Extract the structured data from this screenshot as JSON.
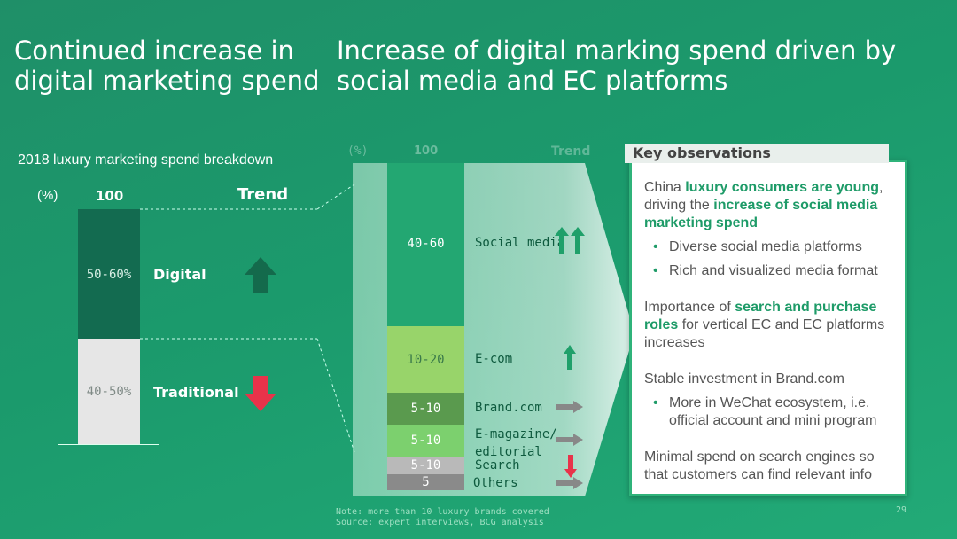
{
  "titles": {
    "left": "Continued increase in digital marketing spend",
    "right": "Increase of digital marking spend driven by social media and EC platforms"
  },
  "left_chart": {
    "subtitle": "2018 luxury marketing spend breakdown",
    "unit": "(%)",
    "total": "100",
    "trend_header": "Trend"
  },
  "right_chart": {
    "unit": "(%)",
    "total": "100",
    "trend_header": "Trend"
  },
  "chart_data": [
    {
      "type": "bar",
      "title": "2018 luxury marketing spend breakdown",
      "ylabel": "(%)",
      "total": "100",
      "stacked": true,
      "segments": [
        {
          "name": "Digital",
          "range": "50-60%",
          "low": 50,
          "high": 60,
          "trend": "up",
          "color": "#136b50"
        },
        {
          "name": "Traditional",
          "range": "40-50%",
          "low": 40,
          "high": 50,
          "trend": "down",
          "color": "#e6e6e6"
        }
      ]
    },
    {
      "type": "bar",
      "title": "",
      "ylabel": "(%)",
      "total": "100",
      "stacked": true,
      "segments": [
        {
          "name": "Social media",
          "range": "40-60",
          "low": 40,
          "high": 60,
          "trend": "strong-up",
          "color": "#23a772"
        },
        {
          "name": "E-com",
          "range": "10-20",
          "low": 10,
          "high": 20,
          "trend": "up",
          "color": "#98d46a"
        },
        {
          "name": "Brand.com",
          "range": "5-10",
          "low": 5,
          "high": 10,
          "trend": "flat",
          "color": "#5a9a4e"
        },
        {
          "name": "E-magazine/ editorial",
          "range": "5-10",
          "low": 5,
          "high": 10,
          "trend": "flat",
          "color": "#7cd06e"
        },
        {
          "name": "Search",
          "range": "5-10",
          "low": 5,
          "high": 10,
          "trend": "down",
          "color": "#b9b9b9"
        },
        {
          "name": "Others",
          "range": "5",
          "low": 5,
          "high": 5,
          "trend": "flat",
          "color": "#8a8a8a"
        }
      ]
    }
  ],
  "observations": {
    "header": "Key observations",
    "p1_a": "China ",
    "p1_hl1": "luxury consumers are young",
    "p1_b": ", driving the ",
    "p1_hl2": "increase of social media marketing spend",
    "bullet1": "Diverse social media platforms",
    "bullet2": "Rich and visualized media format",
    "p2_a": "Importance of ",
    "p2_hl": "search and purchase roles",
    "p2_b": " for vertical EC and EC platforms increases",
    "p3": "Stable investment in Brand.com",
    "bullet3": "More in WeChat ecosystem, i.e. official account and mini program",
    "p4": "Minimal spend on search engines so that customers can find relevant info"
  },
  "footer": {
    "note": "Note: more than 10 luxury brands covered",
    "source": "Source: expert interviews, BCG analysis",
    "page": "29"
  },
  "colors": {
    "arrow_up": "#146a4c",
    "arrow_down": "#e8334a",
    "arrow_up_small": "#1fa06a",
    "arrow_flat": "#888888",
    "highlight": "#1e9b68"
  }
}
